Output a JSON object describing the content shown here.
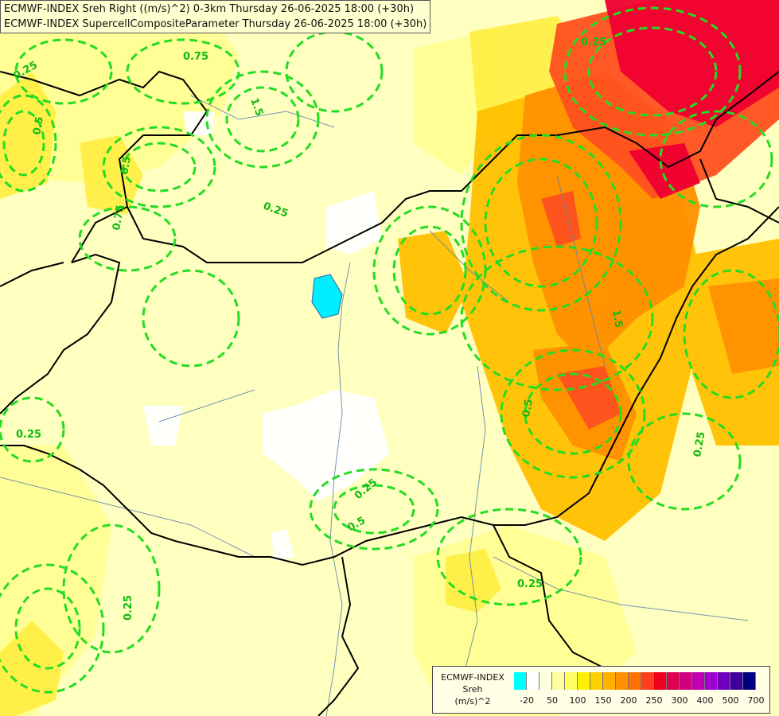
{
  "header": {
    "line1": "ECMWF-INDEX Sreh Right ((m/s)^2) 0-3km Thursday 26-06-2025 18:00 (+30h)",
    "line2": "ECMWF-INDEX SupercellCompositeParameter Thursday 26-06-2025 18:00 (+30h)"
  },
  "contour_labels": [
    "0.25",
    "0.25",
    "0.25",
    "0.25",
    "0.25",
    "0.25",
    "0.25",
    "0.25",
    "0.5",
    "0.5",
    "0.5",
    "0.5",
    "0.75",
    "0.75",
    "1.5",
    "1.5"
  ],
  "legend": {
    "line1": "ECMWF-INDEX",
    "line2": "Sreh",
    "line3": "(m/s)^2",
    "ticks": [
      "-20",
      "50",
      "100",
      "150",
      "200",
      "250",
      "300",
      "400",
      "500",
      "700"
    ],
    "colors": [
      "#00ffff",
      "#ffffff",
      "#ffffe0",
      "#ffffa0",
      "#ffff60",
      "#fff000",
      "#ffd000",
      "#ffb000",
      "#ff9000",
      "#ff7000",
      "#ff4020",
      "#f00020",
      "#e00050",
      "#d00080",
      "#c000b0",
      "#a000d0",
      "#7000c0",
      "#4000a0",
      "#000080"
    ]
  },
  "colors": {
    "background": "#ffffc0",
    "contour": "#22dd22",
    "border": "#000000",
    "river": "#6688aa",
    "lake": "#00eeff"
  }
}
